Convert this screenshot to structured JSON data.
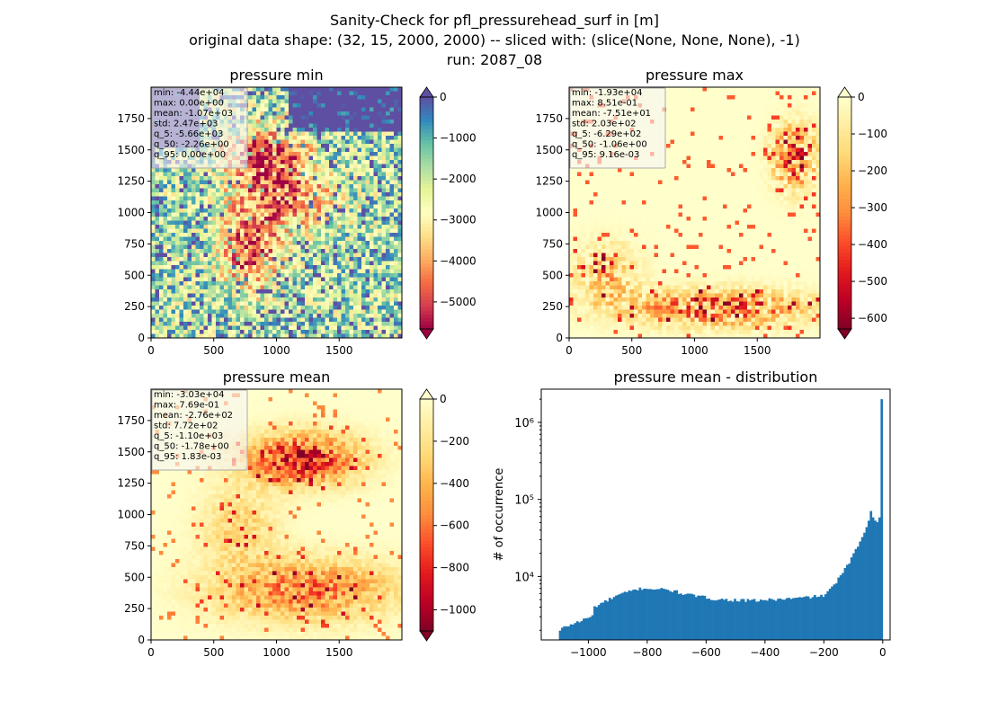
{
  "figure": {
    "title_line1": "Sanity-Check for pfl_pressurehead_surf in [m]",
    "title_line2": "original data shape: (32, 15, 2000, 2000) -- sliced with: (slice(None, None, None), -1)",
    "title_line3": "run: 2087_08"
  },
  "chart_data": [
    {
      "type": "heatmap",
      "title": "pressure min",
      "colormap": "Spectral",
      "colorbar_ticks": [
        "0",
        "−1000",
        "−2000",
        "−3000",
        "−4000",
        "−5000"
      ],
      "colorbar_tick_values": [
        0,
        -1000,
        -2000,
        -3000,
        -4000,
        -5000
      ],
      "colorbar_range": [
        -5660,
        0
      ],
      "colorbar_extend": "both",
      "x_ticks": [
        "0",
        "500",
        "1000",
        "1500"
      ],
      "y_ticks": [
        "0",
        "250",
        "500",
        "750",
        "1000",
        "1250",
        "1500",
        "1750"
      ],
      "xlim": [
        0,
        2000
      ],
      "ylim": [
        0,
        2000
      ],
      "stats": [
        "min: -4.44e+04",
        "max: 0.00e+00",
        "mean: -1.07e+03",
        "std: 2.47e+03",
        "q_5: -5.66e+03",
        "q_50: -2.26e+00",
        "q_95: 0.00e+00"
      ]
    },
    {
      "type": "heatmap",
      "title": "pressure max",
      "colormap": "YlOrRd_r",
      "colorbar_ticks": [
        "0",
        "−100",
        "−200",
        "−300",
        "−400",
        "−500",
        "−600"
      ],
      "colorbar_tick_values": [
        0,
        -100,
        -200,
        -300,
        -400,
        -500,
        -600
      ],
      "colorbar_range": [
        -629,
        0
      ],
      "colorbar_extend": "both",
      "x_ticks": [
        "0",
        "500",
        "1000",
        "1500"
      ],
      "y_ticks": [
        "0",
        "250",
        "500",
        "750",
        "1000",
        "1250",
        "1500",
        "1750"
      ],
      "xlim": [
        0,
        2000
      ],
      "ylim": [
        0,
        2000
      ],
      "stats": [
        "min: -1.93e+04",
        "max: 8.51e-01",
        "mean: -7.51e+01",
        "std: 2.03e+02",
        "q_5: -6.29e+02",
        "q_50: -1.06e+00",
        "q_95: 9.16e-03"
      ]
    },
    {
      "type": "heatmap",
      "title": "pressure mean",
      "colormap": "YlOrRd_r",
      "colorbar_ticks": [
        "0",
        "−200",
        "−400",
        "−600",
        "−800",
        "−1000"
      ],
      "colorbar_tick_values": [
        0,
        -200,
        -400,
        -600,
        -800,
        -1000
      ],
      "colorbar_range": [
        -1100,
        0
      ],
      "colorbar_extend": "both",
      "x_ticks": [
        "0",
        "500",
        "1000",
        "1500"
      ],
      "y_ticks": [
        "0",
        "250",
        "500",
        "750",
        "1000",
        "1250",
        "1500",
        "1750"
      ],
      "xlim": [
        0,
        2000
      ],
      "ylim": [
        0,
        2000
      ],
      "stats": [
        "min: -3.03e+04",
        "max: 7.69e-01",
        "mean: -2.76e+02",
        "std: 7.72e+02",
        "q_5: -1.10e+03",
        "q_50: -1.78e+00",
        "q_95: 1.83e-03"
      ]
    },
    {
      "type": "bar",
      "subtype": "histogram",
      "title": "pressure mean - distribution",
      "xlabel": "",
      "ylabel": "# of occurrence",
      "y_scale": "log",
      "color": "#1f77b4",
      "xlim": [
        -1160,
        25
      ],
      "ylim": [
        1500,
        2700000
      ],
      "x_ticks": [
        "−1000",
        "−800",
        "−600",
        "−400",
        "−200",
        "0"
      ],
      "x_tick_values": [
        -1000,
        -800,
        -600,
        -400,
        -200,
        0
      ],
      "y_ticks": [
        "10⁴",
        "10⁵",
        "10⁶"
      ],
      "y_tick_values": [
        10000,
        100000,
        1000000
      ],
      "bin_range": [
        -1100,
        0
      ],
      "bin_count": 150,
      "anchors_x": [
        -1100,
        -1090,
        -1075,
        -1050,
        -1020,
        -985,
        -980,
        -960,
        -930,
        -900,
        -870,
        -840,
        -820,
        -800,
        -780,
        -750,
        -720,
        -700,
        -680,
        -650,
        -620,
        -600,
        -570,
        -540,
        -510,
        -480,
        -450,
        -420,
        -400,
        -370,
        -340,
        -310,
        -280,
        -250,
        -230,
        -215,
        -200,
        -190,
        -180,
        -170,
        -160,
        -150,
        -140,
        -130,
        -120,
        -110,
        -100,
        -90,
        -80,
        -70,
        -60,
        -50,
        -40,
        -32,
        -25,
        -20,
        -15,
        -10,
        -7,
        -4,
        -1
      ],
      "anchors_y": [
        1900,
        2100,
        2250,
        2450,
        2700,
        3100,
        4000,
        4400,
        5000,
        5700,
        6200,
        6700,
        7000,
        7000,
        6900,
        6800,
        6600,
        6300,
        6000,
        5700,
        5500,
        5300,
        5100,
        5000,
        4950,
        4900,
        4850,
        4900,
        4950,
        5000,
        5100,
        5150,
        5250,
        5400,
        5500,
        5600,
        5650,
        6000,
        6600,
        7400,
        8300,
        9400,
        10600,
        12000,
        14000,
        16000,
        19000,
        22500,
        27000,
        33000,
        40000,
        52000,
        70000,
        60000,
        52000,
        52000,
        54000,
        56000,
        60000,
        70000,
        2000000
      ]
    }
  ]
}
